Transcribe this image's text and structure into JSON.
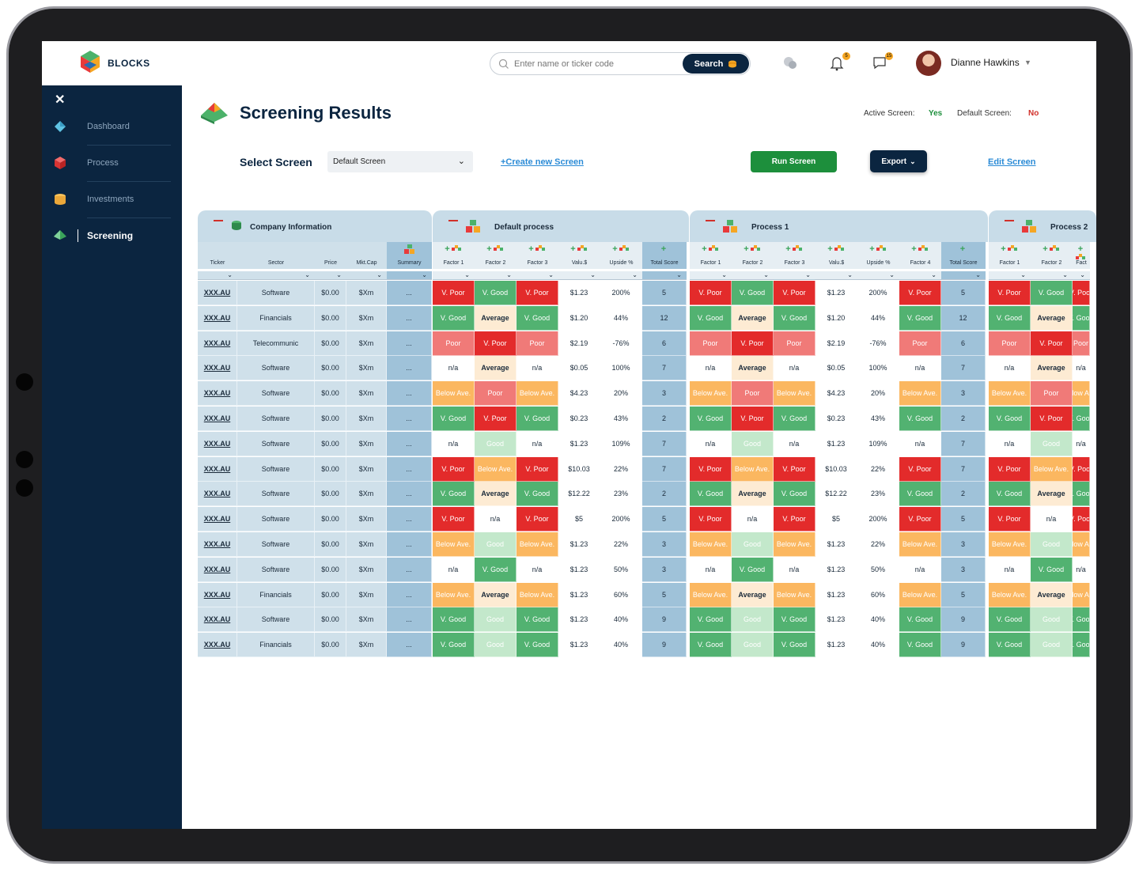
{
  "brand": {
    "name": "BLOCKS"
  },
  "search": {
    "placeholder": "Enter name or ticker code",
    "button": "Search"
  },
  "header": {
    "user_name": "Dianne Hawkins",
    "notif_count": "5",
    "msg_count": "15"
  },
  "sidebar": {
    "close": "✕",
    "items": [
      {
        "label": "Dashboard",
        "icon": "dashboard-icon"
      },
      {
        "label": "Process",
        "icon": "process-icon"
      },
      {
        "label": "Investments",
        "icon": "investments-icon"
      },
      {
        "label": "Screening",
        "icon": "screening-icon",
        "active": true
      }
    ]
  },
  "page": {
    "title": "Screening Results",
    "active_screen_label": "Active Screen:",
    "active_screen_value": "Yes",
    "default_screen_label": "Default Screen:",
    "default_screen_value": "No",
    "select_label": "Select Screen",
    "select_value": "Default Screen",
    "create_link": "+Create new Screen",
    "run_button": "Run Screen",
    "export_button": "Export",
    "edit_link": "Edit Screen"
  },
  "table": {
    "groups": [
      {
        "title": "Company Information",
        "columns": [
          "Ticker",
          "Sector",
          "Price",
          "Mkt.Cap",
          "Summary"
        ]
      },
      {
        "title": "Default process",
        "columns": [
          "Factor 1",
          "Factor 2",
          "Factor 3",
          "Valu.$",
          "Upside %",
          "Total Score"
        ]
      },
      {
        "title": "Process 1",
        "columns": [
          "Factor 1",
          "Factor 2",
          "Factor 3",
          "Valu.$",
          "Upside %",
          "Factor 4",
          "Total Score"
        ]
      },
      {
        "title": "Process 2",
        "columns": [
          "Factor 1",
          "Factor 2",
          "Fact"
        ]
      }
    ],
    "rows": [
      {
        "ticker": "XXX.AU",
        "sector": "Software",
        "price": "$0.00",
        "mktcap": "$Xm",
        "summary": "...",
        "f1": "V. Poor",
        "f2": "V. Good",
        "f3": "V. Poor",
        "valu": "$1.23",
        "upside": "200%",
        "total": "5"
      },
      {
        "ticker": "XXX.AU",
        "sector": "Financials",
        "price": "$0.00",
        "mktcap": "$Xm",
        "summary": "...",
        "f1": "V. Good",
        "f2": "Average",
        "f3": "V. Good",
        "valu": "$1.20",
        "upside": "44%",
        "total": "12"
      },
      {
        "ticker": "XXX.AU",
        "sector": "Telecommunic",
        "price": "$0.00",
        "mktcap": "$Xm",
        "summary": "...",
        "f1": "Poor",
        "f2": "V. Poor",
        "f3": "Poor",
        "valu": "$2.19",
        "upside": "-76%",
        "total": "6"
      },
      {
        "ticker": "XXX.AU",
        "sector": "Software",
        "price": "$0.00",
        "mktcap": "$Xm",
        "summary": "...",
        "f1": "n/a",
        "f2": "Average",
        "f3": "n/a",
        "valu": "$0.05",
        "upside": "100%",
        "total": "7"
      },
      {
        "ticker": "XXX.AU",
        "sector": "Software",
        "price": "$0.00",
        "mktcap": "$Xm",
        "summary": "...",
        "f1": "Below Ave.",
        "f2": "Poor",
        "f3": "Below Ave.",
        "valu": "$4.23",
        "upside": "20%",
        "total": "3"
      },
      {
        "ticker": "XXX.AU",
        "sector": "Software",
        "price": "$0.00",
        "mktcap": "$Xm",
        "summary": "...",
        "f1": "V. Good",
        "f2": "V. Poor",
        "f3": "V. Good",
        "valu": "$0.23",
        "upside": "43%",
        "total": "2"
      },
      {
        "ticker": "XXX.AU",
        "sector": "Software",
        "price": "$0.00",
        "mktcap": "$Xm",
        "summary": "...",
        "f1": "n/a",
        "f2": "Good",
        "f3": "n/a",
        "valu": "$1.23",
        "upside": "109%",
        "total": "7"
      },
      {
        "ticker": "XXX.AU",
        "sector": "Software",
        "price": "$0.00",
        "mktcap": "$Xm",
        "summary": "...",
        "f1": "V. Poor",
        "f2": "Below Ave.",
        "f3": "V. Poor",
        "valu": "$10.03",
        "upside": "22%",
        "total": "7"
      },
      {
        "ticker": "XXX.AU",
        "sector": "Software",
        "price": "$0.00",
        "mktcap": "$Xm",
        "summary": "...",
        "f1": "V. Good",
        "f2": "Average",
        "f3": "V. Good",
        "valu": "$12.22",
        "upside": "23%",
        "total": "2"
      },
      {
        "ticker": "XXX.AU",
        "sector": "Software",
        "price": "$0.00",
        "mktcap": "$Xm",
        "summary": "...",
        "f1": "V. Poor",
        "f2": "n/a",
        "f3": "V. Poor",
        "valu": "$5",
        "upside": "200%",
        "total": "5"
      },
      {
        "ticker": "XXX.AU",
        "sector": "Software",
        "price": "$0.00",
        "mktcap": "$Xm",
        "summary": "...",
        "f1": "Below Ave.",
        "f2": "Good",
        "f3": "Below Ave.",
        "valu": "$1.23",
        "upside": "22%",
        "total": "3"
      },
      {
        "ticker": "XXX.AU",
        "sector": "Software",
        "price": "$0.00",
        "mktcap": "$Xm",
        "summary": "...",
        "f1": "n/a",
        "f2": "V. Good",
        "f3": "n/a",
        "valu": "$1.23",
        "upside": "50%",
        "total": "3"
      },
      {
        "ticker": "XXX.AU",
        "sector": "Financials",
        "price": "$0.00",
        "mktcap": "$Xm",
        "summary": "...",
        "f1": "Below Ave.",
        "f2": "Average",
        "f3": "Below Ave.",
        "valu": "$1.23",
        "upside": "60%",
        "total": "5"
      },
      {
        "ticker": "XXX.AU",
        "sector": "Software",
        "price": "$0.00",
        "mktcap": "$Xm",
        "summary": "...",
        "f1": "V. Good",
        "f2": "Good",
        "f3": "V. Good",
        "valu": "$1.23",
        "upside": "40%",
        "total": "9"
      },
      {
        "ticker": "XXX.AU",
        "sector": "Financials",
        "price": "$0.00",
        "mktcap": "$Xm",
        "summary": "...",
        "f1": "V. Good",
        "f2": "Good",
        "f3": "V. Good",
        "valu": "$1.23",
        "upside": "40%",
        "total": "9"
      }
    ]
  },
  "colors": {
    "V. Poor": "#e32b2b",
    "Poor": "#f07a78",
    "Below Ave.": "#fbb760",
    "Average": "#fdebd3",
    "Good": "#c3e8cb",
    "V. Good": "#52b271",
    "n/a": "#ffffff",
    "info_bg": "#cfe0ea",
    "info_alt": "#bed5e2",
    "score_bg": "#9fc2d9"
  }
}
